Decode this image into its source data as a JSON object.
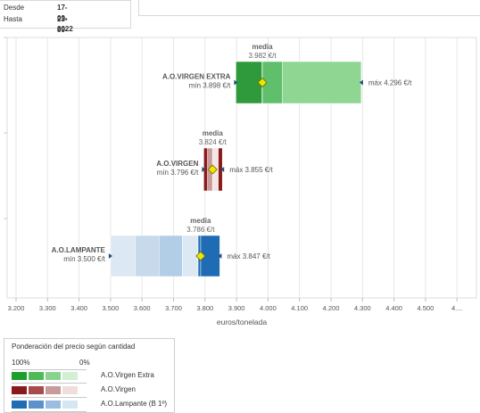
{
  "date_range": {
    "from_label": "Desde",
    "from_value": "17-09-2022",
    "to_label": "Hasta",
    "to_value": "23-09-2022"
  },
  "chart_data": {
    "type": "bar",
    "orientation": "horizontal-range",
    "xlabel": "euros/tonelada",
    "xlim": [
      3200,
      4550
    ],
    "ticks": [
      "3.200",
      "3.300",
      "3.400",
      "3.500",
      "3.600",
      "3.700",
      "3.800",
      "3.900",
      "4.000",
      "4.100",
      "4.200",
      "4.300",
      "4.400",
      "4.500",
      "4...."
    ],
    "grid": "vertical",
    "series": [
      {
        "name": "A.O.VIRGEN EXTRA",
        "min": 3898,
        "max": 4296,
        "mean": 3982,
        "min_label": "mín 3.898 €/t",
        "max_label": "máx 4.296 €/t",
        "mean_label": "media",
        "mean_value_label": "3.982 €/t",
        "segments": [
          3898,
          3981,
          4046,
          4296
        ],
        "colors": [
          "#2e9a3c",
          "#5fbf6a",
          "#8fd693",
          "#c9ebcb"
        ]
      },
      {
        "name": "A.O.VIRGEN",
        "min": 3796,
        "max": 3855,
        "mean": 3824,
        "min_label": "mín 3.796 €/t",
        "max_label": "máx 3.855 €/t",
        "mean_label": "media",
        "mean_value_label": "3.824 €/t",
        "segments": [
          3796,
          3808,
          3825,
          3842,
          3855
        ],
        "colors": [
          "#8b1a1a",
          "#c99a9a",
          "#f5e6e6",
          "#8b1a1a"
        ]
      },
      {
        "name": "A.O.LAMPANTE",
        "min": 3500,
        "max": 3847,
        "mean": 3786,
        "min_label": "mín 3.500 €/t",
        "max_label": "máx 3.847 €/t",
        "mean_label": "media",
        "mean_value_label": "3.786 €/t",
        "segments": [
          3500,
          3578,
          3654,
          3728,
          3778,
          3847
        ],
        "colors": [
          "#dce8f3",
          "#c6daeb",
          "#b2cee6",
          "#dce8f3",
          "#1f6cb5"
        ]
      }
    ]
  },
  "legend": {
    "title": "Ponderación del precio según cantidad",
    "pct_high": "100%",
    "pct_low": "0%",
    "items": [
      {
        "label": "A.O.Virgen Extra",
        "colors": [
          "#1e9e2c",
          "#4fbb58",
          "#8ad38f",
          "#d2eed3"
        ]
      },
      {
        "label": "A.O.Virgen",
        "colors": [
          "#8b1a1a",
          "#a84b4b",
          "#c99a9a",
          "#f0dede"
        ]
      },
      {
        "label": "A.O.Lampante (B 1º)",
        "colors": [
          "#1f6cb5",
          "#5a92c9",
          "#9bbde0",
          "#d7e6f3"
        ]
      }
    ]
  }
}
